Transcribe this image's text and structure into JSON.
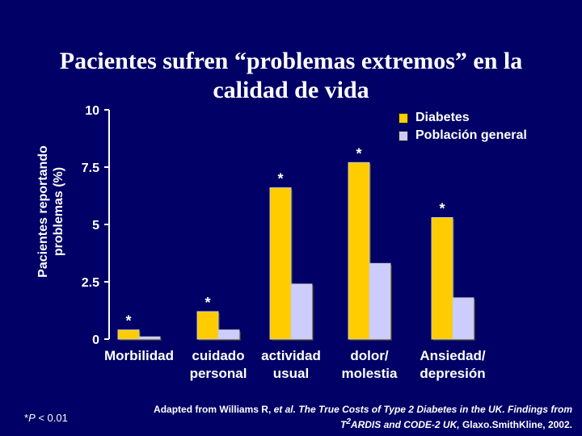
{
  "title": "Pacientes sufren “problemas extremos” en la calidad de vida",
  "footnote": {
    "prefix": "*",
    "symbol": "P",
    "text": " < 0.01"
  },
  "source": {
    "part1": "Adapted from Williams R, ",
    "part2": "et al. The True Costs of Type 2 Diabetes in the UK. Findings from T",
    "sup": "2",
    "part3": "ARDIS and CODE-2 UK,",
    "part4": " Glaxo.SmithKline, 2002."
  },
  "chart_data": {
    "type": "bar",
    "ylabel": "Pacientes reportando problemas (%)",
    "ylim": [
      0,
      10
    ],
    "yticks": [
      {
        "value": 0,
        "label": "0"
      },
      {
        "value": 2.5,
        "label": "2.5"
      },
      {
        "value": 5,
        "label": "5"
      },
      {
        "value": 7.5,
        "label": "7.5"
      },
      {
        "value": 10,
        "label": "10"
      }
    ],
    "categories": [
      "Morbilidad",
      "cuidado\npersonal",
      "actividad\nusual",
      "dolor/\nmolestia",
      "Ansiedad/\ndepresión"
    ],
    "series": [
      {
        "name": "Diabetes",
        "color": "#ffcc00",
        "values": [
          0.4,
          1.2,
          6.6,
          7.7,
          5.3
        ],
        "markers": [
          "*",
          "*",
          "*",
          "*",
          "*"
        ]
      },
      {
        "name": "Población general",
        "color": "#ccccff",
        "values": [
          0.1,
          0.4,
          2.4,
          3.3,
          1.8
        ]
      }
    ],
    "grid": false,
    "legend": "top-right"
  }
}
